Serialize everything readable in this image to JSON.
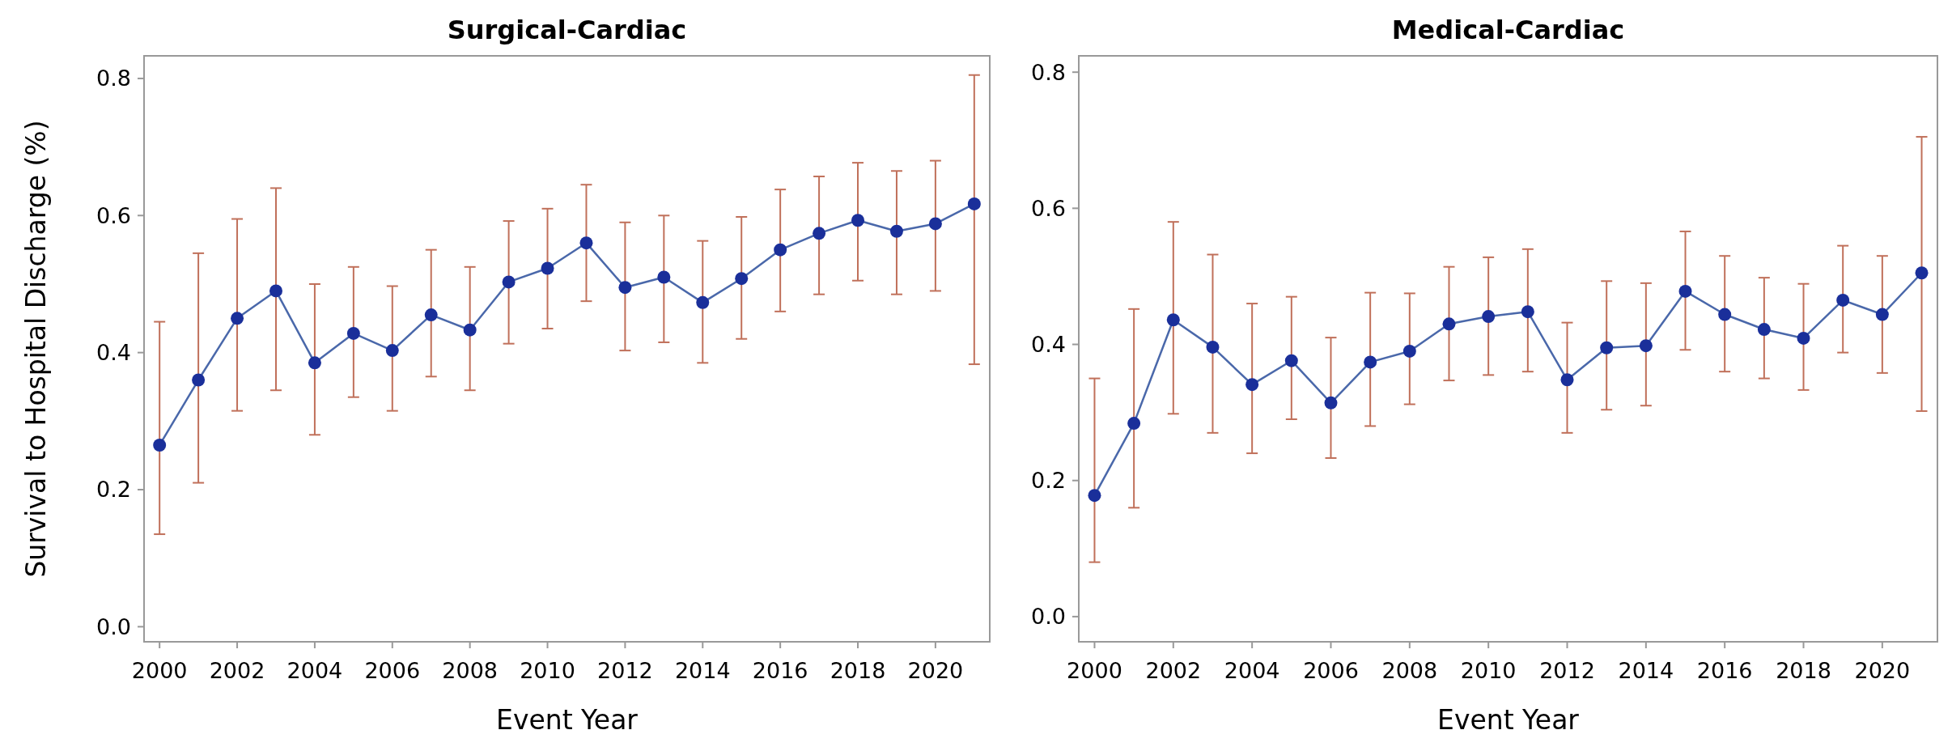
{
  "chart_data": [
    {
      "type": "line",
      "title": "Surgical-Cardiac",
      "xlabel": "Event Year",
      "ylabel": "Survival to Hospital Discharge (%)",
      "x": [
        2000,
        2001,
        2002,
        2003,
        2004,
        2005,
        2006,
        2007,
        2008,
        2009,
        2010,
        2011,
        2012,
        2013,
        2014,
        2015,
        2016,
        2017,
        2018,
        2019,
        2020,
        2021
      ],
      "series": [
        {
          "color": "#1a2f9a",
          "values": [
            0.265,
            0.36,
            0.45,
            0.49,
            0.385,
            0.428,
            0.403,
            0.455,
            0.433,
            0.503,
            0.523,
            0.56,
            0.495,
            0.51,
            0.473,
            0.508,
            0.55,
            0.574,
            0.593,
            0.577,
            0.588,
            0.617
          ],
          "errors": [
            [
              0.135,
              0.445
            ],
            [
              0.21,
              0.545
            ],
            [
              0.315,
              0.595
            ],
            [
              0.345,
              0.64
            ],
            [
              0.28,
              0.5
            ],
            [
              0.335,
              0.525
            ],
            [
              0.315,
              0.497
            ],
            [
              0.365,
              0.55
            ],
            [
              0.345,
              0.525
            ],
            [
              0.413,
              0.592
            ],
            [
              0.435,
              0.61
            ],
            [
              0.475,
              0.645
            ],
            [
              0.403,
              0.59
            ],
            [
              0.415,
              0.6
            ],
            [
              0.385,
              0.563
            ],
            [
              0.42,
              0.598
            ],
            [
              0.46,
              0.638
            ],
            [
              0.485,
              0.657
            ],
            [
              0.505,
              0.677
            ],
            [
              0.485,
              0.665
            ],
            [
              0.49,
              0.68
            ],
            [
              0.383,
              0.805
            ]
          ]
        }
      ],
      "xlim": [
        1999.6,
        2021.4
      ],
      "xticks": [
        2000,
        2002,
        2004,
        2006,
        2008,
        2010,
        2012,
        2014,
        2016,
        2018,
        2020
      ],
      "ylim": [
        -0.022,
        0.833
      ],
      "yticks": [
        {
          "value": 0,
          "label": "0.0"
        },
        0.2,
        0.4,
        0.6,
        0.8
      ],
      "marker": "circle",
      "line_style": "solid",
      "grid": false
    },
    {
      "type": "line",
      "title": "Medical-Cardiac",
      "xlabel": "Event Year",
      "x": [
        2000,
        2001,
        2002,
        2003,
        2004,
        2005,
        2006,
        2007,
        2008,
        2009,
        2010,
        2011,
        2012,
        2013,
        2014,
        2015,
        2016,
        2017,
        2018,
        2019,
        2020,
        2021
      ],
      "series": [
        {
          "color": "#1a2f9a",
          "values": [
            0.178,
            0.284,
            0.436,
            0.396,
            0.341,
            0.376,
            0.314,
            0.374,
            0.39,
            0.43,
            0.441,
            0.448,
            0.348,
            0.395,
            0.398,
            0.478,
            0.444,
            0.422,
            0.409,
            0.465,
            0.444,
            0.505
          ],
          "errors": [
            [
              0.08,
              0.35
            ],
            [
              0.16,
              0.452
            ],
            [
              0.298,
              0.58
            ],
            [
              0.27,
              0.532
            ],
            [
              0.24,
              0.46
            ],
            [
              0.29,
              0.47
            ],
            [
              0.233,
              0.41
            ],
            [
              0.28,
              0.476
            ],
            [
              0.312,
              0.475
            ],
            [
              0.347,
              0.514
            ],
            [
              0.355,
              0.528
            ],
            [
              0.36,
              0.54
            ],
            [
              0.27,
              0.432
            ],
            [
              0.304,
              0.493
            ],
            [
              0.31,
              0.49
            ],
            [
              0.392,
              0.566
            ],
            [
              0.36,
              0.53
            ],
            [
              0.35,
              0.498
            ],
            [
              0.333,
              0.489
            ],
            [
              0.388,
              0.545
            ],
            [
              0.358,
              0.53
            ],
            [
              0.302,
              0.705
            ]
          ]
        }
      ],
      "xlim": [
        1999.6,
        2021.4
      ],
      "xticks": [
        2000,
        2002,
        2004,
        2006,
        2008,
        2010,
        2012,
        2014,
        2016,
        2018,
        2020
      ],
      "ylim": [
        -0.037,
        0.824
      ],
      "yticks": [
        {
          "value": 0,
          "label": "0.0"
        },
        0.2,
        0.4,
        0.6,
        0.8
      ],
      "marker": "circle",
      "line_style": "solid",
      "grid": false
    }
  ]
}
